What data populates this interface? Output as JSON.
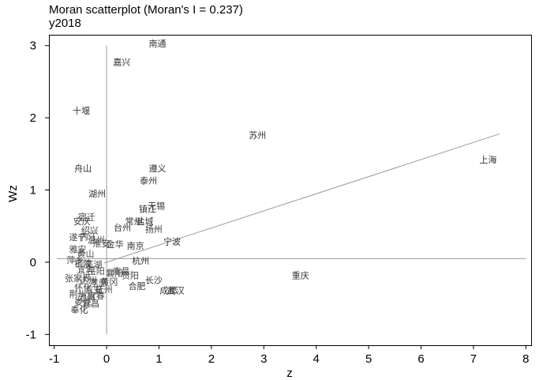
{
  "chart_data": {
    "type": "scatter",
    "title": "Moran scatterplot (Moran's I = 0.237)",
    "subtitle": "y2018",
    "xlabel": "z",
    "ylabel": "Wz",
    "xlim": [
      -1.1,
      8.1
    ],
    "ylim": [
      -1.15,
      3.15
    ],
    "xticks": [
      -1,
      0,
      1,
      2,
      3,
      4,
      5,
      6,
      7,
      8
    ],
    "yticks": [
      -1,
      0,
      1,
      2,
      3
    ],
    "reference_lines": {
      "x": 0,
      "y": 0.05
    },
    "fit_line": {
      "slope": 0.237,
      "x_range": [
        -0.05,
        7.5
      ]
    },
    "labeled_points": [
      {
        "label": "南通",
        "x": 0.97,
        "y": 3.03
      },
      {
        "label": "嘉兴",
        "x": 0.29,
        "y": 2.77
      },
      {
        "label": "十堰",
        "x": -0.48,
        "y": 2.1
      },
      {
        "label": "苏州",
        "x": 2.88,
        "y": 1.76
      },
      {
        "label": "上海",
        "x": 7.28,
        "y": 1.42
      },
      {
        "label": "舟山",
        "x": -0.45,
        "y": 1.3
      },
      {
        "label": "遵义",
        "x": 0.97,
        "y": 1.3
      },
      {
        "label": "泰州",
        "x": 0.8,
        "y": 1.13
      },
      {
        "label": "湖州",
        "x": -0.18,
        "y": 0.95
      },
      {
        "label": "无锡",
        "x": 0.95,
        "y": 0.78
      },
      {
        "label": "镇江",
        "x": 0.78,
        "y": 0.74
      },
      {
        "label": "盐城",
        "x": 0.73,
        "y": 0.57
      },
      {
        "label": "常州",
        "x": 0.52,
        "y": 0.57
      },
      {
        "label": "扬州",
        "x": 0.9,
        "y": 0.46
      },
      {
        "label": "台州",
        "x": 0.3,
        "y": 0.48
      },
      {
        "label": "宁波",
        "x": 1.25,
        "y": 0.29
      },
      {
        "label": "金华",
        "x": 0.16,
        "y": 0.25
      },
      {
        "label": "南京",
        "x": 0.55,
        "y": 0.23
      },
      {
        "label": "杭州",
        "x": 0.65,
        "y": 0.02
      },
      {
        "label": "重庆",
        "x": 3.7,
        "y": -0.18
      },
      {
        "label": "长沙",
        "x": 0.9,
        "y": -0.25
      },
      {
        "label": "合肥",
        "x": 0.58,
        "y": -0.33
      },
      {
        "label": "成都",
        "x": 1.18,
        "y": -0.39
      },
      {
        "label": "武汉",
        "x": 1.32,
        "y": -0.39
      },
      {
        "label": "奉化",
        "x": -0.52,
        "y": -0.66
      }
    ],
    "cluster_points": [
      {
        "label": "宿迁",
        "x": -0.38,
        "y": 0.63
      },
      {
        "label": "安庆",
        "x": -0.47,
        "y": 0.57
      },
      {
        "label": "绍兴",
        "x": -0.32,
        "y": 0.44
      },
      {
        "label": "遂宁",
        "x": -0.55,
        "y": 0.35
      },
      {
        "label": "内江",
        "x": -0.35,
        "y": 0.36
      },
      {
        "label": "温州",
        "x": -0.2,
        "y": 0.31
      },
      {
        "label": "淮安",
        "x": -0.1,
        "y": 0.26
      },
      {
        "label": "雅安",
        "x": -0.55,
        "y": 0.18
      },
      {
        "label": "黄山",
        "x": -0.4,
        "y": 0.12
      },
      {
        "label": "萍乡",
        "x": -0.6,
        "y": 0.03
      },
      {
        "label": "铜陵",
        "x": -0.45,
        "y": -0.02
      },
      {
        "label": "芜湖",
        "x": -0.25,
        "y": -0.03
      },
      {
        "label": "宜宾",
        "x": -0.4,
        "y": -0.1
      },
      {
        "label": "岳阳",
        "x": -0.2,
        "y": -0.12
      },
      {
        "label": "襄阳",
        "x": 0.15,
        "y": -0.15
      },
      {
        "label": "南昌",
        "x": 0.28,
        "y": -0.12
      },
      {
        "label": "贵阳",
        "x": 0.45,
        "y": -0.18
      },
      {
        "label": "张家界",
        "x": -0.55,
        "y": -0.22
      },
      {
        "label": "达州",
        "x": -0.35,
        "y": -0.25
      },
      {
        "label": "孝感",
        "x": -0.15,
        "y": -0.28
      },
      {
        "label": "黄冈",
        "x": 0.05,
        "y": -0.27
      },
      {
        "label": "怀化",
        "x": -0.45,
        "y": -0.35
      },
      {
        "label": "吉安",
        "x": -0.25,
        "y": -0.38
      },
      {
        "label": "抚州",
        "x": -0.05,
        "y": -0.38
      },
      {
        "label": "荆州",
        "x": -0.55,
        "y": -0.44
      },
      {
        "label": "池州",
        "x": -0.38,
        "y": -0.48
      },
      {
        "label": "宜春",
        "x": -0.2,
        "y": -0.46
      },
      {
        "label": "娄底",
        "x": -0.45,
        "y": -0.55
      },
      {
        "label": "宜昌",
        "x": -0.3,
        "y": -0.57
      }
    ]
  }
}
